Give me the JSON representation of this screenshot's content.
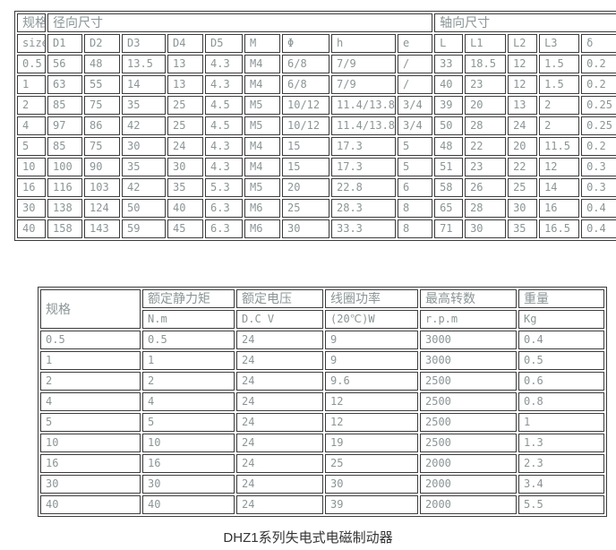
{
  "page": {
    "caption": "DHZ1系列失电式电磁制动器",
    "text_color": "#8b9596",
    "border_color": "#3c3c3c"
  },
  "dimension_table": {
    "group_headers": {
      "spec": "规格",
      "radial": "径向尺寸",
      "axial": "轴向尺寸"
    },
    "columns": [
      "size",
      "D1",
      "D2",
      "D3",
      "D4",
      "D5",
      "M",
      "Φ",
      "h",
      "e",
      "L",
      "L1",
      "L2",
      "L3",
      "δ"
    ],
    "rows": [
      [
        "0.5",
        "56",
        "48",
        "13.5",
        "13",
        "4.3",
        "M4",
        "6/8",
        "7/9",
        "/",
        "33",
        "18.5",
        "12",
        "1.5",
        "0.2"
      ],
      [
        "1",
        "63",
        "55",
        "14",
        "13",
        "4.3",
        "M4",
        "6/8",
        "7/9",
        "/",
        "40",
        "23",
        "12",
        "1.5",
        "0.2"
      ],
      [
        "2",
        "85",
        "75",
        "35",
        "25",
        "4.5",
        "M5",
        "10/12",
        "11.4/13.8",
        "3/4",
        "39",
        "20",
        "13",
        "2",
        "0.25"
      ],
      [
        "4",
        "97",
        "86",
        "42",
        "25",
        "4.5",
        "M5",
        "10/12",
        "11.4/13.8",
        "3/4",
        "50",
        "28",
        "24",
        "2",
        "0.25"
      ],
      [
        "5",
        "85",
        "75",
        "30",
        "24",
        "4.3",
        "M4",
        "15",
        "17.3",
        "5",
        "48",
        "22",
        "20",
        "11.5",
        "0.2"
      ],
      [
        "10",
        "100",
        "90",
        "35",
        "30",
        "4.3",
        "M4",
        "15",
        "17.3",
        "5",
        "51",
        "23",
        "22",
        "12",
        "0.3"
      ],
      [
        "16",
        "116",
        "103",
        "42",
        "35",
        "5.3",
        "M5",
        "20",
        "22.8",
        "6",
        "58",
        "26",
        "25",
        "14",
        "0.3"
      ],
      [
        "30",
        "138",
        "124",
        "50",
        "40",
        "6.3",
        "M6",
        "25",
        "28.3",
        "8",
        "65",
        "28",
        "30",
        "16",
        "0.4"
      ],
      [
        "40",
        "158",
        "143",
        "59",
        "45",
        "6.3",
        "M6",
        "30",
        "33.3",
        "8",
        "71",
        "30",
        "35",
        "16.5",
        "0.4"
      ]
    ]
  },
  "spec_table": {
    "spec_header": "规格",
    "columns": [
      {
        "label": "额定静力矩",
        "unit": "N.m"
      },
      {
        "label": "额定电压",
        "unit": "D.C V"
      },
      {
        "label": "线圈功率",
        "unit": "(20℃)W"
      },
      {
        "label": "最高转数",
        "unit": "r.p.m"
      },
      {
        "label": "重量",
        "unit": "Kg"
      }
    ],
    "rows": [
      [
        "0.5",
        "0.5",
        "24",
        "9",
        "3000",
        "0.4"
      ],
      [
        "1",
        "1",
        "24",
        "9",
        "3000",
        "0.5"
      ],
      [
        "2",
        "2",
        "24",
        "9.6",
        "2500",
        "0.6"
      ],
      [
        "4",
        "4",
        "24",
        "12",
        "2500",
        "0.8"
      ],
      [
        "5",
        "5",
        "24",
        "12",
        "2500",
        "1"
      ],
      [
        "10",
        "10",
        "24",
        "19",
        "2500",
        "1.3"
      ],
      [
        "16",
        "16",
        "24",
        "25",
        "2000",
        "2.3"
      ],
      [
        "30",
        "30",
        "24",
        "30",
        "2000",
        "3.4"
      ],
      [
        "40",
        "40",
        "24",
        "39",
        "2000",
        "5.5"
      ]
    ]
  }
}
